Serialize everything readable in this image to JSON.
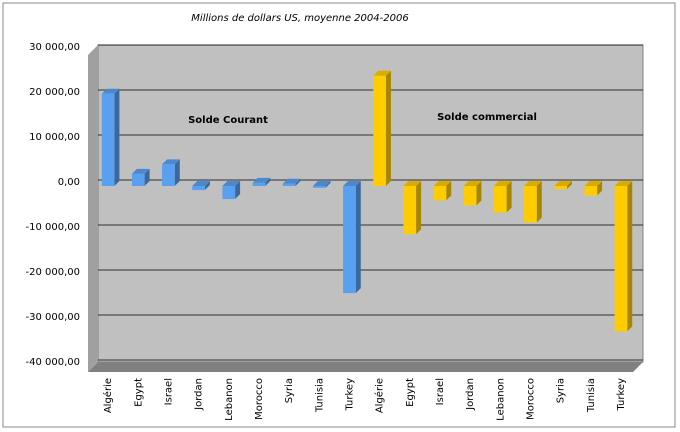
{
  "chart_data": {
    "type": "bar",
    "title": "Millions de dollars US, moyenne 2004-2006",
    "categories": [
      "Algérie",
      "Egypt",
      "Israel",
      "Jordan",
      "Lebanon",
      "Morocco",
      "Syria",
      "Tunisia",
      "Turkey",
      "Algérie",
      "Egypt",
      "Israel",
      "Jordan",
      "Lebanon",
      "Morocco",
      "Syria",
      "Tunisia",
      "Turkey"
    ],
    "series": [
      {
        "name": "Solde Courant",
        "color": "#5aa0f0",
        "values": [
          20500,
          2700,
          4800,
          -900,
          -2900,
          700,
          500,
          -400,
          -23800,
          null,
          null,
          null,
          null,
          null,
          null,
          null,
          null,
          null
        ]
      },
      {
        "name": "Solde commercial",
        "color": "#ffcc00",
        "values": [
          null,
          null,
          null,
          null,
          null,
          null,
          null,
          null,
          null,
          24500,
          -10700,
          -3200,
          -4300,
          -5900,
          -8100,
          -700,
          -2100,
          -32300
        ]
      }
    ],
    "ylim": [
      -40000,
      30000
    ],
    "yticks": [
      {
        "value": -40000,
        "label": "-40 000,00"
      },
      {
        "value": -30000,
        "label": "-30 000,00"
      },
      {
        "value": -20000,
        "label": "-20 000,00"
      },
      {
        "value": -10000,
        "label": "-10 000,00"
      },
      {
        "value": 0,
        "label": "0,00"
      },
      {
        "value": 10000,
        "label": "10 000,00"
      },
      {
        "value": 20000,
        "label": "20 000,00"
      },
      {
        "value": 30000,
        "label": "30 000,00"
      }
    ],
    "grid": true
  }
}
